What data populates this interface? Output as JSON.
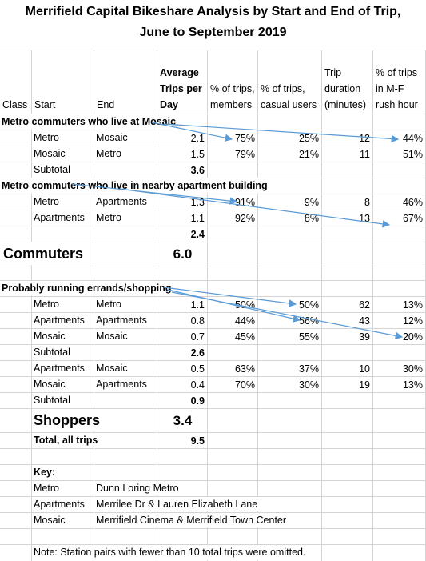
{
  "title": [
    "Merrifield Capital Bikeshare Analysis by Start and End of Trip,",
    "June to September 2019"
  ],
  "table": {
    "columns": [
      "Class",
      "Start",
      "End",
      "Average Trips per Day",
      "% of trips, members",
      "% of trips, casual users",
      "Trip duration (minutes)",
      "% of trips in M-F rush hour"
    ],
    "rows": [
      [
        "Metro commuters who live at Mosaic"
      ],
      [
        null,
        "Metro",
        "Mosaic",
        "2.1",
        "75%",
        "25%",
        "12",
        "44%"
      ],
      [
        null,
        "Mosaic",
        "Metro",
        "1.5",
        "79%",
        "21%",
        "11",
        "51%"
      ],
      [
        null,
        "Subtotal",
        null,
        "3.6"
      ],
      [
        "Metro commuters who live in nearby apartment building"
      ],
      [
        null,
        "Metro",
        "Apartments",
        "1.3",
        "91%",
        "9%",
        "8",
        "46%"
      ],
      [
        null,
        "Apartments",
        "Metro",
        "1.1",
        "92%",
        "8%",
        "13",
        "67%"
      ],
      [
        null,
        null,
        null,
        "2.4"
      ],
      [
        "Commuters",
        null,
        null,
        "6.0"
      ],
      [],
      [
        "Probably running errands/shopping"
      ],
      [
        null,
        "Metro",
        "Metro",
        "1.1",
        "50%",
        "50%",
        "62",
        "13%"
      ],
      [
        null,
        "Apartments",
        "Apartments",
        "0.8",
        "44%",
        "56%",
        "43",
        "12%"
      ],
      [
        null,
        "Mosaic",
        "Mosaic",
        "0.7",
        "45%",
        "55%",
        "39",
        "20%"
      ],
      [
        null,
        "Subtotal",
        null,
        "2.6"
      ],
      [
        null,
        "Apartments",
        "Mosaic",
        "0.5",
        "63%",
        "37%",
        "10",
        "30%"
      ],
      [
        null,
        "Mosaic",
        "Apartments",
        "0.4",
        "70%",
        "30%",
        "19",
        "13%"
      ],
      [
        null,
        "Subtotal",
        null,
        "0.9"
      ],
      [
        null,
        "Shoppers",
        null,
        "3.4"
      ],
      [
        null,
        "Total, all trips",
        null,
        "9.5"
      ],
      [],
      [
        null,
        "Key:"
      ],
      [
        null,
        "Metro",
        "Dunn Loring Metro"
      ],
      [
        null,
        "Apartments",
        "Merrilee Dr & Lauren Elizabeth Lane"
      ],
      [
        null,
        "Mosaic",
        "Merrifield Cinema & Merrifield Town Center"
      ],
      [],
      [
        null,
        "Note:  Station pairs with fewer than 10 total trips were omitted."
      ]
    ]
  }
}
